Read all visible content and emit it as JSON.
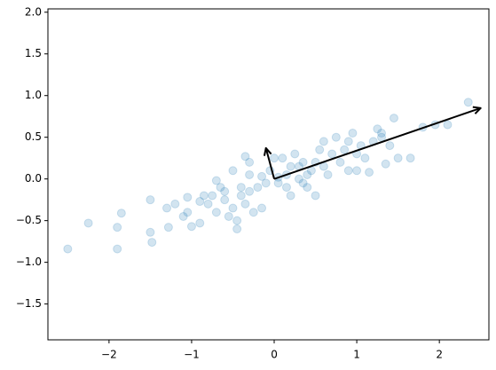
{
  "chart_data": {
    "type": "scatter",
    "x": [
      -2.5,
      -2.25,
      -1.9,
      -1.85,
      -1.9,
      -1.5,
      -1.5,
      -1.48,
      -1.3,
      -1.28,
      -1.2,
      -1.1,
      -1.05,
      -1.05,
      -1.0,
      -0.9,
      -0.9,
      -0.85,
      -0.8,
      -0.75,
      -0.7,
      -0.7,
      -0.65,
      -0.6,
      -0.55,
      -0.5,
      -0.5,
      -0.45,
      -0.4,
      -0.4,
      -0.35,
      -0.3,
      -0.3,
      -0.35,
      -0.3,
      -0.25,
      -0.2,
      -0.15,
      -0.1,
      -0.05,
      0,
      0.05,
      0.1,
      0.15,
      0.15,
      0.2,
      0.2,
      0.25,
      0.3,
      0.3,
      0.35,
      0.4,
      0.4,
      0.45,
      0.5,
      0.5,
      0.55,
      0.6,
      0.65,
      0.7,
      0.75,
      0.8,
      0.85,
      0.9,
      0.9,
      0.95,
      1.0,
      1.05,
      1.1,
      1.15,
      1.2,
      1.25,
      1.3,
      1.35,
      1.4,
      1.45,
      1.5,
      1.65,
      1.8,
      1.95,
      2.1,
      2.35,
      -0.6,
      -0.45,
      0.05,
      -0.15,
      0.35,
      0.6,
      1.3,
      1.0
    ],
    "y": [
      -0.84,
      -0.53,
      -0.58,
      -0.41,
      -0.84,
      -0.25,
      -0.64,
      -0.76,
      -0.35,
      -0.58,
      -0.3,
      -0.45,
      -0.22,
      -0.4,
      -0.57,
      -0.53,
      -0.27,
      -0.2,
      -0.3,
      -0.2,
      -0.4,
      -0.02,
      -0.1,
      -0.25,
      -0.45,
      -0.35,
      0.1,
      -0.5,
      -0.2,
      -0.1,
      -0.3,
      -0.15,
      0.05,
      0.27,
      0.2,
      -0.4,
      -0.1,
      0.03,
      -0.05,
      0.1,
      0.25,
      -0.05,
      0.25,
      -0.1,
      0.05,
      0.15,
      -0.2,
      0.3,
      0.0,
      0.15,
      0.2,
      -0.1,
      0.05,
      0.1,
      0.2,
      -0.2,
      0.35,
      0.15,
      0.05,
      0.3,
      0.5,
      0.2,
      0.35,
      0.1,
      0.45,
      0.55,
      0.3,
      0.4,
      0.25,
      0.08,
      0.45,
      0.6,
      0.5,
      0.18,
      0.4,
      0.73,
      0.25,
      0.25,
      0.62,
      0.65,
      0.65,
      0.92,
      -0.15,
      -0.6,
      0.02,
      -0.35,
      -0.05,
      0.45,
      0.55,
      0.1
    ],
    "color": "#1f77b4",
    "arrows": [
      {
        "x": [
          0,
          2.5
        ],
        "y": [
          0,
          0.85
        ]
      },
      {
        "x": [
          0,
          -0.1
        ],
        "y": [
          0,
          0.37
        ]
      }
    ],
    "arrow_color": "#000000",
    "xlim": [
      -2.74,
      2.6
    ],
    "ylim": [
      -1.93,
      2.04
    ],
    "xticks": [
      {
        "value": -2,
        "label": "−2"
      },
      {
        "value": -1,
        "label": "−1"
      },
      0,
      1,
      2
    ],
    "yticks": [
      {
        "value": -1.5,
        "label": "−1.5"
      },
      {
        "value": -1.0,
        "label": "−1.0"
      },
      {
        "value": -0.5,
        "label": "−0.5"
      },
      {
        "value": 0,
        "label": "0.0"
      },
      {
        "value": 0.5,
        "label": "0.5"
      },
      {
        "value": 1.0,
        "label": "1.0"
      },
      {
        "value": 1.5,
        "label": "1.5"
      },
      {
        "value": 2.0,
        "label": "2.0"
      }
    ]
  }
}
